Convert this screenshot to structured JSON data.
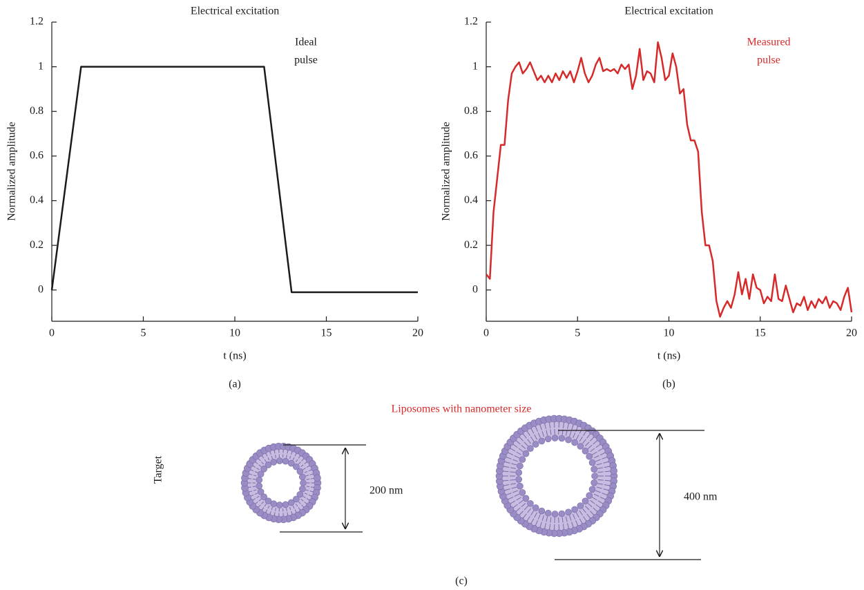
{
  "chart_data": [
    {
      "type": "line",
      "title": "Electrical excitation",
      "ylabel": "Normalized amplitude",
      "xlabel": "t (ns)",
      "panel_label": "(a)",
      "annotation": [
        "Ideal",
        "pulse"
      ],
      "annotation_color": "#1a1a1a",
      "color": "#1a1a1a",
      "x": [
        0,
        1.6,
        11.6,
        13.1,
        20
      ],
      "values": [
        0,
        1,
        1,
        -0.01,
        -0.01
      ],
      "xlim": [
        0,
        20
      ],
      "ylim": [
        -0.14,
        1.2
      ],
      "xticks": [
        0,
        5,
        10,
        15,
        20
      ],
      "yticks": [
        0,
        0.2,
        0.4,
        0.6,
        0.8,
        1,
        1.2
      ]
    },
    {
      "type": "line",
      "title": "Electrical excitation",
      "ylabel": "Normalized amplitude",
      "xlabel": "t (ns)",
      "panel_label": "(b)",
      "annotation": [
        "Measured",
        "pulse"
      ],
      "annotation_color": "#d62a2a",
      "color": "#d62a2a",
      "x": [
        0,
        0.2,
        0.4,
        0.6,
        0.8,
        1.0,
        1.2,
        1.4,
        1.6,
        1.8,
        2.0,
        2.2,
        2.4,
        2.6,
        2.8,
        3.0,
        3.2,
        3.4,
        3.6,
        3.8,
        4.0,
        4.2,
        4.4,
        4.6,
        4.8,
        5.0,
        5.2,
        5.4,
        5.6,
        5.8,
        6.0,
        6.2,
        6.4,
        6.6,
        6.8,
        7.0,
        7.2,
        7.4,
        7.6,
        7.8,
        8.0,
        8.2,
        8.4,
        8.6,
        8.8,
        9.0,
        9.2,
        9.4,
        9.6,
        9.8,
        10.0,
        10.2,
        10.4,
        10.6,
        10.8,
        11.0,
        11.2,
        11.4,
        11.6,
        11.8,
        12.0,
        12.2,
        12.4,
        12.6,
        12.8,
        13.0,
        13.2,
        13.4,
        13.6,
        13.8,
        14.0,
        14.2,
        14.4,
        14.6,
        14.8,
        15.0,
        15.2,
        15.4,
        15.6,
        15.8,
        16.0,
        16.2,
        16.4,
        16.6,
        16.8,
        17.0,
        17.2,
        17.4,
        17.6,
        17.8,
        18.0,
        18.2,
        18.4,
        18.6,
        18.8,
        19.0,
        19.2,
        19.4,
        19.6,
        19.8,
        20.0
      ],
      "values": [
        0.07,
        0.05,
        0.35,
        0.5,
        0.65,
        0.65,
        0.85,
        0.97,
        1.0,
        1.02,
        0.97,
        0.99,
        1.02,
        0.98,
        0.94,
        0.96,
        0.93,
        0.96,
        0.93,
        0.97,
        0.94,
        0.98,
        0.95,
        0.98,
        0.93,
        0.98,
        1.04,
        0.97,
        0.93,
        0.96,
        1.01,
        1.04,
        0.98,
        0.99,
        0.98,
        0.99,
        0.97,
        1.01,
        0.99,
        1.01,
        0.9,
        0.96,
        1.08,
        0.94,
        0.98,
        0.97,
        0.93,
        1.11,
        1.04,
        0.94,
        0.96,
        1.06,
        1.0,
        0.88,
        0.9,
        0.74,
        0.67,
        0.67,
        0.62,
        0.35,
        0.2,
        0.2,
        0.13,
        -0.05,
        -0.12,
        -0.08,
        -0.05,
        -0.08,
        -0.02,
        0.08,
        -0.02,
        0.05,
        -0.04,
        0.07,
        0.01,
        0.0,
        -0.06,
        -0.03,
        -0.05,
        0.07,
        -0.04,
        -0.05,
        0.02,
        -0.04,
        -0.1,
        -0.06,
        -0.07,
        -0.03,
        -0.09,
        -0.05,
        -0.08,
        -0.04,
        -0.06,
        -0.03,
        -0.08,
        -0.05,
        -0.06,
        -0.09,
        -0.03,
        0.01,
        -0.1
      ],
      "xlim": [
        0,
        20
      ],
      "ylim": [
        -0.14,
        1.2
      ],
      "xticks": [
        0,
        5,
        10,
        15,
        20
      ],
      "yticks": [
        0,
        0.2,
        0.4,
        0.6,
        0.8,
        1,
        1.2
      ]
    }
  ],
  "panel_c": {
    "title": "Liposomes with nanometer size",
    "side_label": "Target",
    "small_size": "200 nm",
    "large_size": "400 nm",
    "panel_label": "(c)"
  }
}
